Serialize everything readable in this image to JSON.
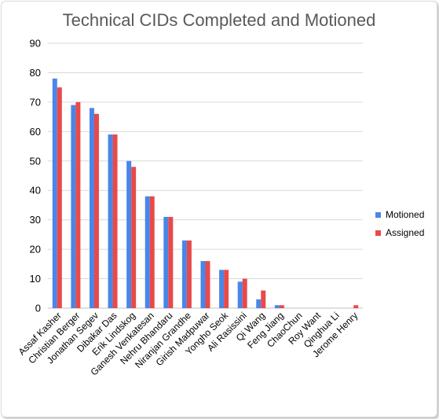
{
  "chart_data": {
    "type": "bar",
    "title": "Technical CIDs Completed and Motioned",
    "categories": [
      "Assaf Kasher",
      "Christian Berger",
      "Jonathan Segev",
      "Dibakar Das",
      "Erik Lindskog",
      "Ganesh Venkatesan",
      "Nehru Bhandaru",
      "Niranjan Grandhe",
      "Girish Madpuwar",
      "Yongho Seok",
      "Ali Rasissini",
      "Qi Wang",
      "Feng Jiang",
      "ChaoChun",
      "Roy Want",
      "Qinghua Li",
      "Jerome Henry"
    ],
    "series": [
      {
        "name": "Motioned",
        "color": "#4a86e8",
        "values": [
          78,
          69,
          68,
          59,
          50,
          38,
          31,
          23,
          16,
          13,
          9,
          3,
          1,
          0,
          0,
          0,
          0
        ]
      },
      {
        "name": "Assigned",
        "color": "#e84a4a",
        "values": [
          75,
          70,
          66,
          59,
          48,
          38,
          31,
          23,
          16,
          13,
          10,
          6,
          1,
          0,
          0,
          0,
          1
        ]
      }
    ],
    "ylim": [
      0,
      90
    ],
    "yticks": [
      0,
      10,
      20,
      30,
      40,
      50,
      60,
      70,
      80,
      90
    ],
    "grid": true,
    "legend": "right"
  }
}
